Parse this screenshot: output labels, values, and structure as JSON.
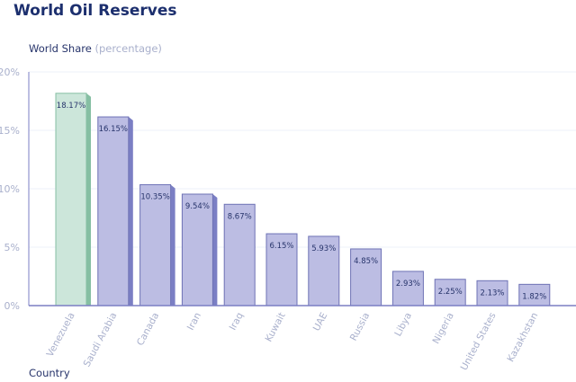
{
  "chart_data": {
    "type": "bar",
    "title": "World Oil Reserves",
    "ylabel": "World Share",
    "ylabel_unit": "(percentage)",
    "xlabel": "Country",
    "ylim": [
      0,
      20
    ],
    "yticks": [
      "0%",
      "5%",
      "10%",
      "15%",
      "20%"
    ],
    "grid": true,
    "categories": [
      "Venezuela",
      "Saudi Arabia",
      "Canada",
      "Iran",
      "Iraq",
      "Kuwait",
      "UAE",
      "Russia",
      "Libya",
      "Nigeria",
      "United States",
      "Kazakhstan"
    ],
    "values": [
      18.17,
      16.15,
      10.35,
      9.54,
      8.67,
      6.15,
      5.93,
      4.85,
      2.93,
      2.25,
      2.13,
      1.82
    ],
    "data_labels": [
      "18.17%",
      "16.15%",
      "10.35%",
      "9.54%",
      "8.67%",
      "6.15%",
      "5.93%",
      "4.85%",
      "2.93%",
      "2.25%",
      "2.13%",
      "1.82%"
    ],
    "highlight_color": "#cce6da",
    "highlight_side_color": "#86bfa3",
    "bar_color": "#bcbde3",
    "bar_side_color": "#7b7fc4",
    "bar_edge_color": "#6e72b5"
  }
}
